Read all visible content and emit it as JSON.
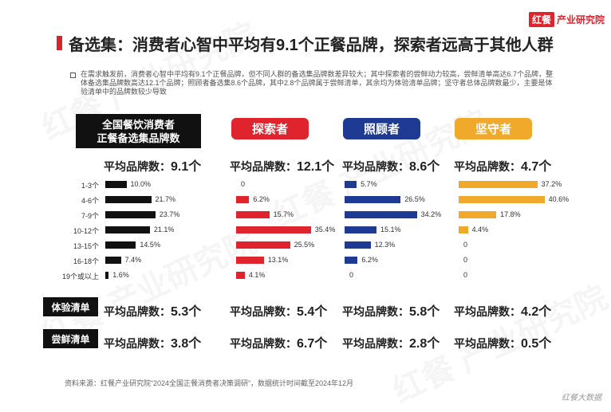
{
  "brand": {
    "logo_box": "红餐",
    "logo_text": "产业研究院"
  },
  "title": "备选集：消费者心智中平均有9.1个正餐品牌，探索者远高于其他人群",
  "note": "在需求触发前，消费者心智中平均有9.1个正餐品牌，但不同人群的备选集品牌数差异较大；其中探索者的尝鲜动力较高，尝鲜清单高达6.7个品牌，整体备选集品牌数高达12.1个品牌；照顾者备选集8.6个品牌，其中2.8个品牌属于尝鲜清单，其余均为体验清单品牌；坚守者总体品牌数最少，主要是体验清单中的品牌数较少导致",
  "avg_label": "平均品牌数：",
  "row_labels": {
    "experience": "体验清单",
    "trial": "尝鲜清单"
  },
  "source": "资料来源：红餐产业研究院“2024全国正餐消费者决策调研”，数据统计时间截至2024年12月",
  "corner_mark": "红餐大数据",
  "colors": {
    "all": "#111111",
    "explorer": "#e0242e",
    "caretaker": "#1f3a93",
    "keeper": "#f0a92b"
  },
  "chart_data": {
    "type": "bar",
    "categories": [
      "1-3个",
      "4-6个",
      "7-9个",
      "10-12个",
      "13-15个",
      "16-18个",
      "19个或以上"
    ],
    "series": [
      {
        "name": "全国餐饮消费者\n正餐备选集品牌数",
        "values": [
          10.0,
          21.7,
          23.7,
          21.1,
          14.5,
          7.4,
          1.6
        ],
        "labels": [
          "10.0%",
          "21.7%",
          "23.7%",
          "21.1%",
          "14.5%",
          "7.4%",
          "1.6%"
        ],
        "avg": "9.1个",
        "experience": "5.3个",
        "trial": "3.8个"
      },
      {
        "name": "探索者",
        "values": [
          0,
          6.2,
          15.7,
          35.4,
          25.5,
          13.1,
          4.1
        ],
        "labels": [
          "0",
          "6.2%",
          "15.7%",
          "35.4%",
          "25.5%",
          "13.1%",
          "4.1%"
        ],
        "avg": "12.1个",
        "experience": "5.4个",
        "trial": "6.7个"
      },
      {
        "name": "照顾者",
        "values": [
          5.7,
          26.5,
          34.2,
          15.1,
          12.3,
          6.2,
          0
        ],
        "labels": [
          "5.7%",
          "26.5%",
          "34.2%",
          "15.1%",
          "12.3%",
          "6.2%",
          "0"
        ],
        "avg": "8.6个",
        "experience": "5.8个",
        "trial": "2.8个"
      },
      {
        "name": "坚守者",
        "values": [
          37.2,
          40.6,
          17.8,
          4.4,
          0,
          0,
          0
        ],
        "labels": [
          "37.2%",
          "40.6%",
          "17.8%",
          "4.4%",
          "0",
          "0",
          "0"
        ],
        "avg": "4.7个",
        "experience": "4.2个",
        "trial": "0.5个"
      }
    ],
    "unit": "%"
  }
}
